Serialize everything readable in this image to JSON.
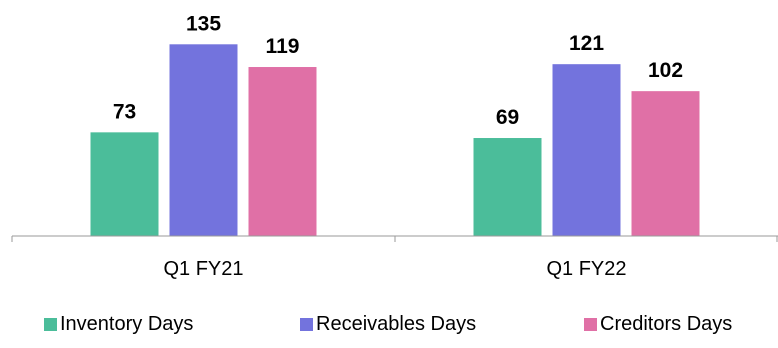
{
  "chart_data": {
    "type": "bar",
    "title": "",
    "xlabel": "",
    "ylabel": "",
    "categories": [
      "Q1 FY21",
      "Q1 FY22"
    ],
    "series": [
      {
        "name": "Inventory Days",
        "values": [
          73,
          69
        ],
        "color": "#4bbd9a"
      },
      {
        "name": "Receivables Days",
        "values": [
          135,
          121
        ],
        "color": "#7373dd"
      },
      {
        "name": "Creditors Days",
        "values": [
          119,
          102
        ],
        "color": "#e070a6"
      }
    ],
    "ylim": [
      0,
      145
    ],
    "grid": false,
    "legend": "bottom",
    "axis_color": "#9a9a9a",
    "data_labels": true
  }
}
